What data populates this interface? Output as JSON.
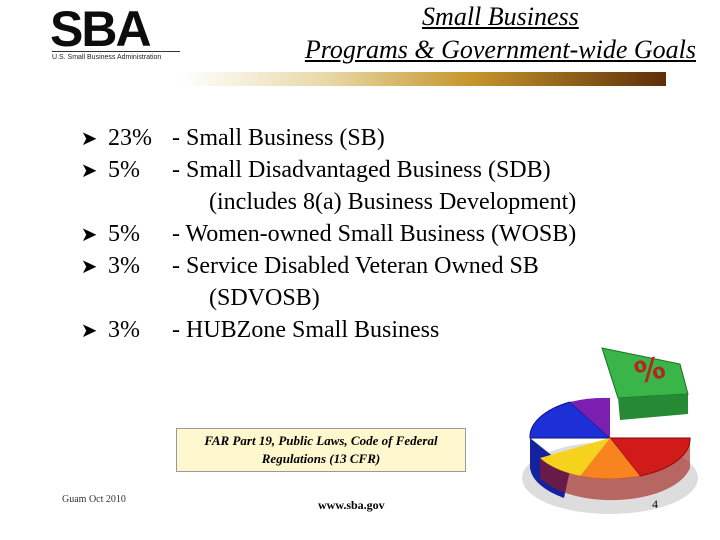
{
  "header": {
    "logo_text": "SBA",
    "logo_tagline": "U.S. Small Business Administration",
    "title_line1": "Small Business",
    "title_line2": "Programs & Government-wide Goals"
  },
  "bullets": [
    {
      "pct": "23%",
      "desc": "- Small Business (SB)"
    },
    {
      "pct": "5%",
      "desc": "- Small Disadvantaged Business (SDB)",
      "continuation": "(includes 8(a) Business Development)"
    },
    {
      "pct": "5%",
      "desc": "- Women-owned Small Business (WOSB)"
    },
    {
      "pct": "3%",
      "desc": "- Service Disabled Veteran Owned SB",
      "continuation": "(SDVOSB)"
    },
    {
      "pct": "3%",
      "desc": "- HUBZone Small Business"
    }
  ],
  "note": {
    "line1": "FAR Part 19, Public Laws, Code of Federal",
    "line2": "Regulations (13 CFR)"
  },
  "pie_graphic": {
    "label": "%",
    "colors": [
      "#1d2fd6",
      "#7a1fb0",
      "#d11a1a",
      "#f7841e",
      "#f5d21c",
      "#39b54a"
    ]
  },
  "footer": {
    "left": "Guam Oct 2010",
    "url": "www.sba.gov",
    "page": "4"
  }
}
